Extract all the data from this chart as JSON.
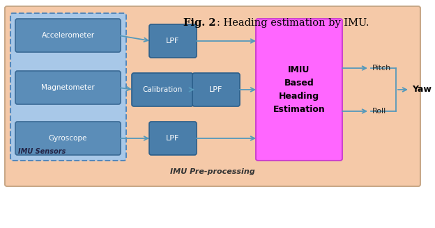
{
  "fig_width": 6.24,
  "fig_height": 3.28,
  "dpi": 100,
  "bg_color": "#F5C9A8",
  "sensor_box_fill": "#5B8DB8",
  "sensor_box_edge": "#3A6A95",
  "dashed_box_fill": "#A8C8E8",
  "dashed_box_edge": "#5588BB",
  "lpf_fill": "#4A7EAA",
  "lpf_edge": "#2A5E8A",
  "imiu_fill": "#FF66FF",
  "imiu_edge": "#CC44CC",
  "outer_edge": "#C8A888",
  "arrow_color": "#5599BB",
  "text_white": "#FFFFFF",
  "text_dark": "#000000",
  "text_sensor": "#111111",
  "sensors": [
    "Accelerometer",
    "Magnetometer",
    "Gyroscope"
  ],
  "imu_label": "IMU Sensors",
  "preproc_label": "IMU Pre-processing",
  "imiu_text": "IMIU\nBased\nHeading\nEstimation",
  "lpf_label": "LPF",
  "calib_label": "Calibration",
  "pitch_label": "Pitch",
  "roll_label": "Roll",
  "yaw_label": "Yaw",
  "caption_bold": "Fig. 2",
  "caption_rest": ": Heading estimation by IMU."
}
